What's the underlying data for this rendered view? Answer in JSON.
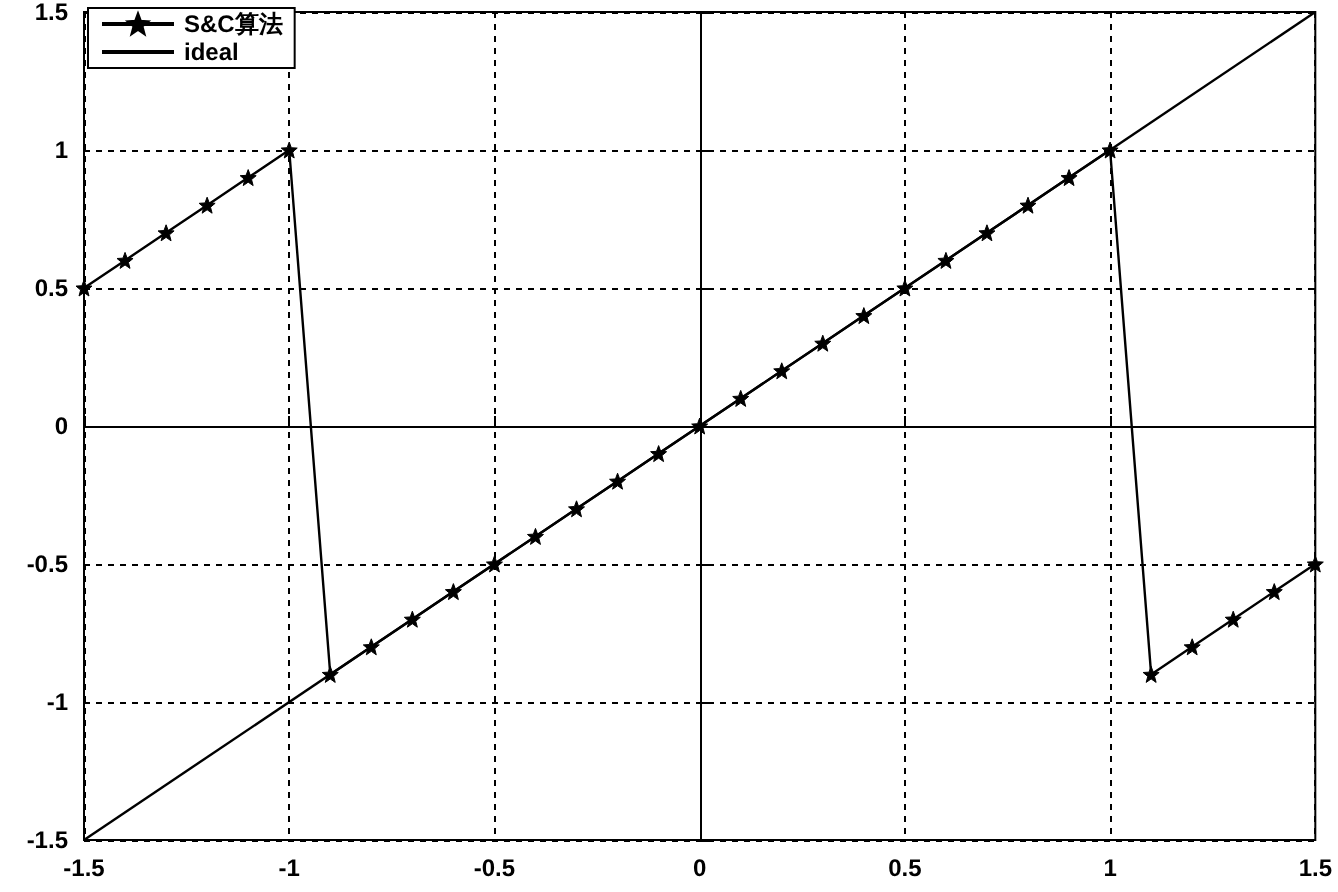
{
  "chart_data": {
    "type": "line",
    "series": [
      {
        "name": "S&C算法",
        "color": "#000000",
        "marker": "star",
        "x": [
          -1.5,
          -1.4,
          -1.3,
          -1.2,
          -1.1,
          -1.0,
          -0.9,
          -0.8,
          -0.7,
          -0.6,
          -0.5,
          -0.4,
          -0.3,
          -0.2,
          -0.1,
          0,
          0.1,
          0.2,
          0.3,
          0.4,
          0.5,
          0.6,
          0.7,
          0.8,
          0.9,
          1.0,
          1.1,
          1.2,
          1.3,
          1.4,
          1.5
        ],
        "values": [
          0.5,
          0.6,
          0.7,
          0.8,
          0.9,
          1.0,
          -0.9,
          -0.8,
          -0.7,
          -0.6,
          -0.5,
          -0.4,
          -0.3,
          -0.2,
          -0.1,
          0,
          0.1,
          0.2,
          0.3,
          0.4,
          0.5,
          0.6,
          0.7,
          0.8,
          0.9,
          1.0,
          -0.9,
          -0.8,
          -0.7,
          -0.6,
          -0.5
        ]
      },
      {
        "name": "ideal",
        "color": "#000000",
        "marker": "none",
        "x": [
          -1.5,
          1.5
        ],
        "values": [
          -1.5,
          1.5
        ]
      }
    ],
    "xlim": [
      -1.5,
      1.5
    ],
    "xticks": [
      -1.5,
      -1,
      -0.5,
      0,
      0.5,
      1,
      1.5
    ],
    "ylim": [
      -1.5,
      1.5
    ],
    "yticks": [
      -1.5,
      -1,
      -0.5,
      0,
      0.5,
      1,
      1.5
    ],
    "grid": true,
    "legend": "top left",
    "line_style": "solid"
  }
}
